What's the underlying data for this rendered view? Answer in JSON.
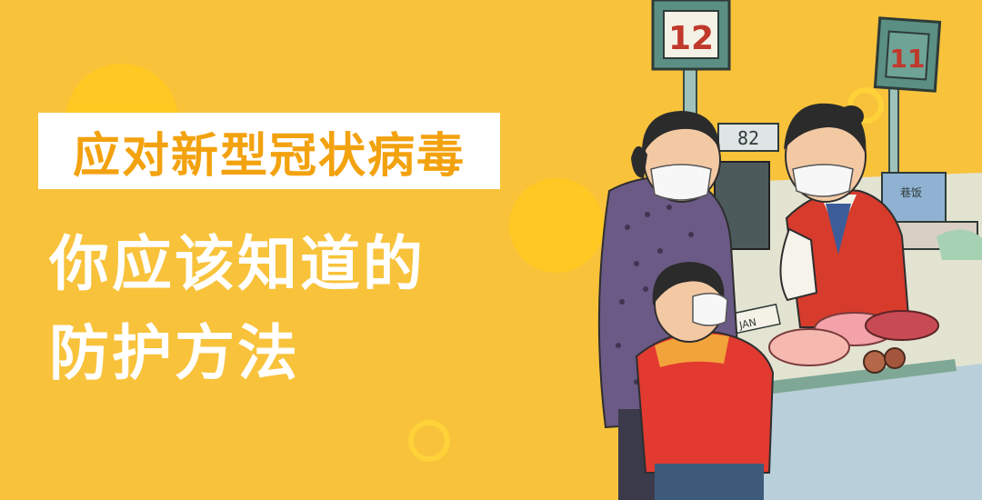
{
  "banner": {
    "title": "应对新型冠状病毒",
    "headline_line1": "你应该知道的",
    "headline_line2": "防护方法",
    "background_color": "#f8c23b",
    "title_color": "#f3a20f",
    "headline_color": "#ffffff"
  },
  "illustration": {
    "counter_sign_left": "12",
    "counter_sign_right": "11",
    "scale_display": "82",
    "box_label": "巷饭",
    "paper_label": "JAN",
    "subject": "watercolor-market-checkout-scene-masked-people"
  }
}
